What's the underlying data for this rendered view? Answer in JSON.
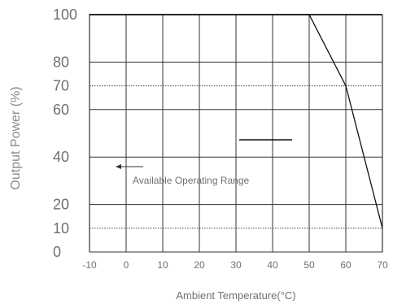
{
  "chart_data": {
    "type": "line",
    "title": "",
    "xlabel": "Ambient Temperature(°C)",
    "ylabel": "Output Power (%)",
    "xlim": [
      -10,
      70
    ],
    "ylim": [
      0,
      100
    ],
    "x_ticks": [
      "-10",
      "0",
      "10",
      "20",
      "30",
      "40",
      "50",
      "60",
      "70"
    ],
    "y_ticks": [
      "0",
      "10",
      "20",
      "40",
      "60",
      "70",
      "80",
      "100"
    ],
    "grid": true,
    "series": [
      {
        "x": [
          -10,
          50,
          60,
          70
        ],
        "y": [
          100,
          100,
          70,
          10
        ]
      }
    ],
    "reference_lines": [
      70,
      10
    ],
    "annotation": {
      "text": "Available Operating Range",
      "arrow": "left"
    }
  }
}
